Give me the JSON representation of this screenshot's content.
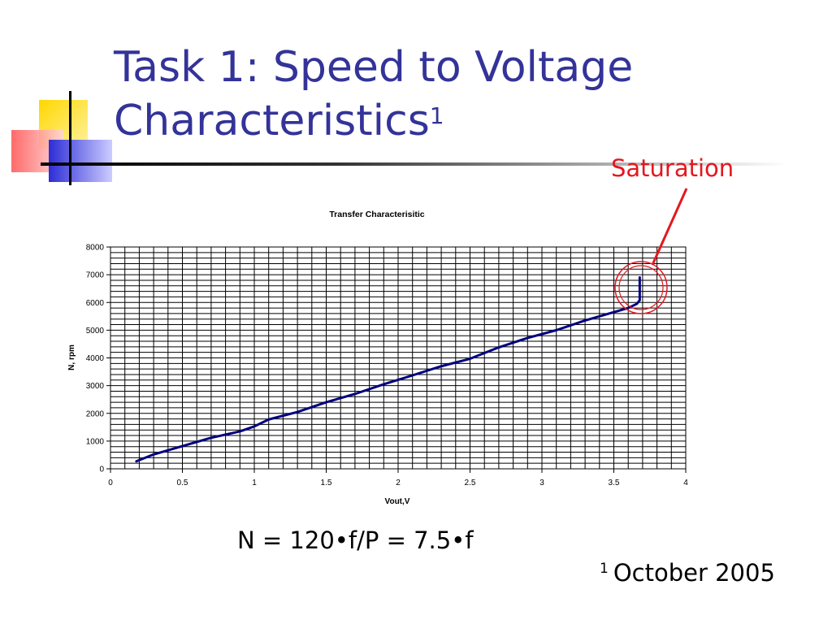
{
  "slide": {
    "title_line1": "Task 1: Speed to Voltage",
    "title_line2": "Characteristics",
    "title_superscript": "1",
    "annotation": "Saturation",
    "formula": "N = 120•f/P = 7.5•f",
    "footnote_marker": "1",
    "footnote_text": "October 2005",
    "colors": {
      "title": "#333399",
      "annotation": "#e4171e",
      "line": "#000080"
    }
  },
  "chart_data": {
    "type": "line",
    "title": "Transfer Characterisitic",
    "xlabel": "Vout,V",
    "ylabel": "N, rpm",
    "xlim": [
      0,
      4
    ],
    "ylim": [
      0,
      8000
    ],
    "xticks": [
      "0",
      "0.5",
      "1",
      "1.5",
      "2",
      "2.5",
      "3",
      "3.5",
      "4"
    ],
    "yticks": [
      "0",
      "1000",
      "2000",
      "3000",
      "4000",
      "5000",
      "6000",
      "7000",
      "8000"
    ],
    "grid": true,
    "series": [
      {
        "x": [
          0.18,
          0.3,
          0.5,
          0.7,
          0.9,
          1.0,
          1.1,
          1.3,
          1.5,
          1.7,
          1.9,
          2.1,
          2.3,
          2.5,
          2.7,
          2.9,
          3.1,
          3.3,
          3.5,
          3.6,
          3.66,
          3.68,
          3.68,
          3.68
        ],
        "y": [
          270,
          520,
          820,
          1120,
          1350,
          1530,
          1780,
          2050,
          2400,
          2700,
          3050,
          3370,
          3700,
          3970,
          4380,
          4720,
          5000,
          5350,
          5650,
          5800,
          5950,
          6080,
          6500,
          6900
        ]
      }
    ]
  }
}
